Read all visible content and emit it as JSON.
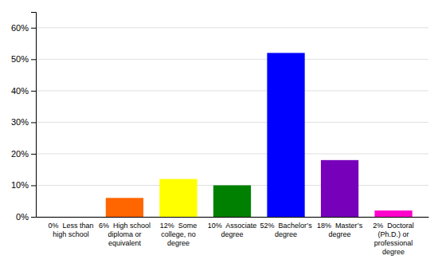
{
  "chart_data": {
    "type": "bar",
    "categories": [
      "0%  Less than\nhigh school",
      "6%  High school\ndiploma or\nequivalent",
      "12%  Some\ncollege, no\ndegree",
      "10%  Associate\ndegree",
      "52%  Bachelor’s\ndegree",
      "18%  Master’s\ndegree",
      "2%  Doctoral\n(Ph.D.) or\nprofessional\ndegree"
    ],
    "values": [
      0,
      6,
      12,
      10,
      52,
      18,
      2
    ],
    "colors": [
      "#cc0000",
      "#ff6600",
      "#ffff00",
      "#008000",
      "#0000ff",
      "#7700bb",
      "#ff00cc"
    ],
    "ylim": [
      0,
      65
    ],
    "yticks": [
      {
        "value": 0,
        "label": "0%"
      },
      {
        "value": 10,
        "label": "10%"
      },
      {
        "value": 20,
        "label": "20%"
      },
      {
        "value": 30,
        "label": "30%"
      },
      {
        "value": 40,
        "label": "40%"
      },
      {
        "value": 50,
        "label": "50%"
      },
      {
        "value": 60,
        "label": "60%"
      }
    ],
    "grid": true
  }
}
